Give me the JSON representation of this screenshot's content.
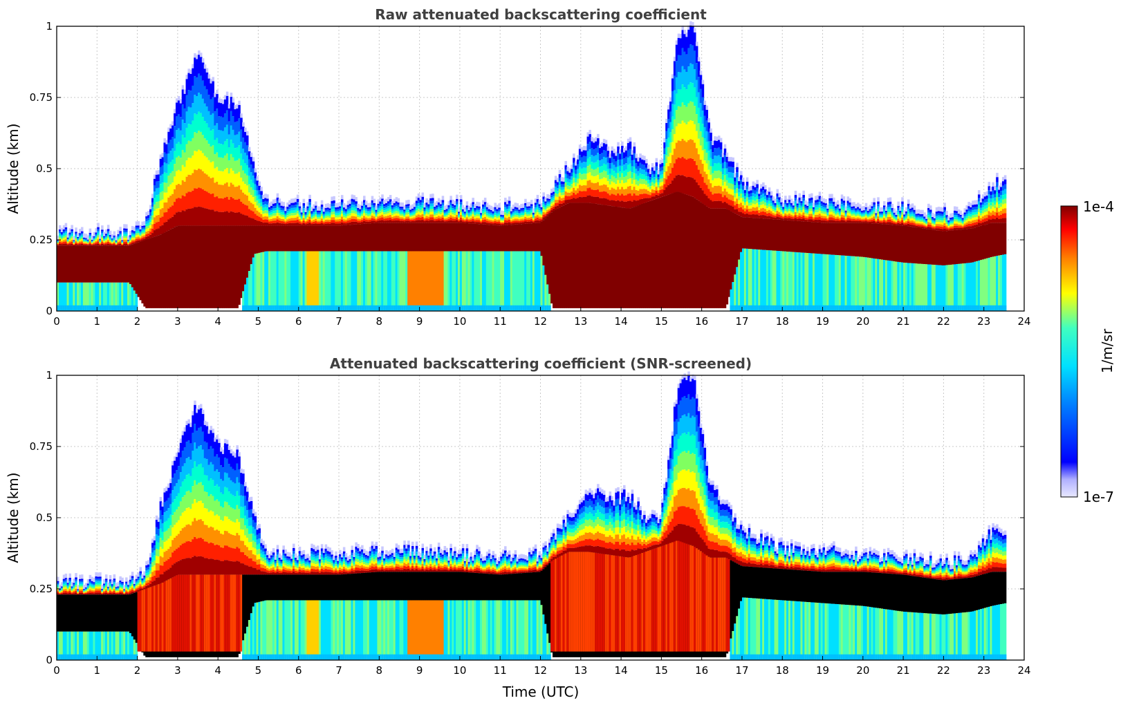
{
  "chart_data": [
    {
      "type": "heatmap",
      "title": "Raw attenuated backscattering coefficient",
      "xlabel": "",
      "ylabel": "Altitude (km)",
      "xlim": [
        0,
        24
      ],
      "ylim": [
        0,
        1
      ],
      "xticks": [
        "0",
        "1",
        "2",
        "3",
        "4",
        "5",
        "6",
        "7",
        "8",
        "9",
        "10",
        "11",
        "12",
        "13",
        "14",
        "15",
        "16",
        "17",
        "18",
        "19",
        "20",
        "21",
        "22",
        "23",
        "24"
      ],
      "yticks": [
        "0",
        "0.25",
        "0.5",
        "0.75",
        "1"
      ],
      "grid": true,
      "data_end_time": 23.55,
      "screened": false
    },
    {
      "type": "heatmap",
      "title": "Attenuated backscattering coefficient (SNR-screened)",
      "xlabel": "Time (UTC)",
      "ylabel": "Altitude (km)",
      "xlim": [
        0,
        24
      ],
      "ylim": [
        0,
        1
      ],
      "xticks": [
        "0",
        "1",
        "2",
        "3",
        "4",
        "5",
        "6",
        "7",
        "8",
        "9",
        "10",
        "11",
        "12",
        "13",
        "14",
        "15",
        "16",
        "17",
        "18",
        "19",
        "20",
        "21",
        "22",
        "23",
        "24"
      ],
      "yticks": [
        "0",
        "0.25",
        "0.5",
        "0.75",
        "1"
      ],
      "grid": true,
      "data_end_time": 23.55,
      "screened": true
    }
  ],
  "colorbar": {
    "label": "1/m/sr",
    "max_label": "1e-4",
    "min_label": "1e-7",
    "colormap": "jet"
  },
  "layer_profile": {
    "description": "approximate backscatter layer top/bottom (km) vs time (UTC)",
    "time": [
      0,
      1.8,
      2.2,
      2.6,
      3.0,
      3.5,
      4.0,
      4.5,
      4.9,
      5.2,
      6,
      7,
      8,
      9,
      10,
      11,
      12,
      12.3,
      12.7,
      13.2,
      13.7,
      14.2,
      14.6,
      15.0,
      15.4,
      15.8,
      16.2,
      16.6,
      17,
      18,
      19,
      20,
      21,
      22,
      22.7,
      23.2,
      23.55
    ],
    "top": [
      0.27,
      0.27,
      0.3,
      0.55,
      0.72,
      0.9,
      0.75,
      0.72,
      0.5,
      0.38,
      0.37,
      0.37,
      0.38,
      0.38,
      0.37,
      0.36,
      0.37,
      0.43,
      0.5,
      0.6,
      0.56,
      0.58,
      0.5,
      0.5,
      0.95,
      1.0,
      0.62,
      0.55,
      0.45,
      0.39,
      0.38,
      0.37,
      0.36,
      0.34,
      0.35,
      0.45,
      0.44
    ],
    "dense_top": [
      0.23,
      0.23,
      0.25,
      0.27,
      0.3,
      0.3,
      0.3,
      0.3,
      0.3,
      0.3,
      0.3,
      0.3,
      0.31,
      0.31,
      0.31,
      0.3,
      0.31,
      0.35,
      0.38,
      0.38,
      0.37,
      0.36,
      0.38,
      0.4,
      0.42,
      0.4,
      0.36,
      0.36,
      0.33,
      0.32,
      0.31,
      0.31,
      0.3,
      0.28,
      0.29,
      0.31,
      0.31
    ],
    "dense_bottom": [
      0.1,
      0.1,
      0.01,
      0.01,
      0.01,
      0.01,
      0.01,
      0.01,
      0.2,
      0.21,
      0.21,
      0.21,
      0.21,
      0.21,
      0.21,
      0.21,
      0.21,
      0.01,
      0.01,
      0.01,
      0.01,
      0.01,
      0.01,
      0.01,
      0.01,
      0.01,
      0.01,
      0.01,
      0.22,
      0.21,
      0.2,
      0.19,
      0.17,
      0.16,
      0.17,
      0.19,
      0.2
    ]
  }
}
